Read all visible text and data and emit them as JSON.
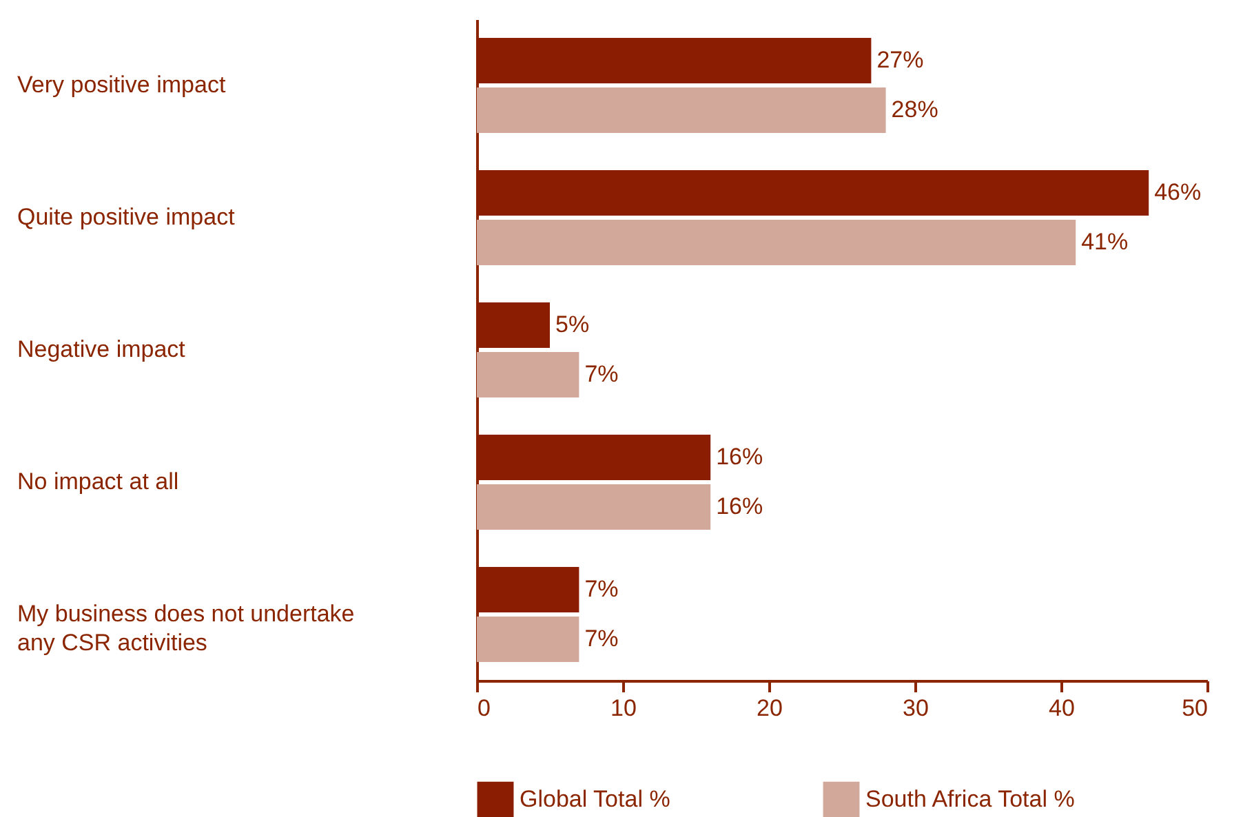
{
  "chart_data": {
    "type": "bar",
    "orientation": "horizontal",
    "categories": [
      "Very positive impact",
      "Quite positive impact",
      "Negative impact",
      "No impact at all",
      "My business does not undertake any CSR activities"
    ],
    "series": [
      {
        "name": "Global Total %",
        "color": "#8b1e02",
        "values": [
          27,
          46,
          5,
          16,
          7
        ],
        "value_labels": [
          "27%",
          "46%",
          "5%",
          "16%",
          "7%"
        ]
      },
      {
        "name": "South Africa Total %",
        "color": "#d2a89b",
        "values": [
          28,
          41,
          7,
          16,
          7
        ],
        "value_labels": [
          "28%",
          "41%",
          "7%",
          "16%",
          "7%"
        ]
      }
    ],
    "xlim": [
      0,
      50
    ],
    "xticks": [
      0,
      10,
      20,
      30,
      40,
      50
    ],
    "legend": "bottom"
  }
}
